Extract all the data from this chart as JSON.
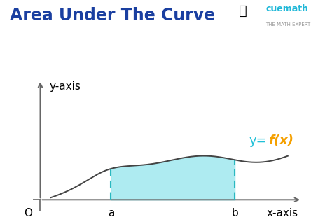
{
  "title": "Area Under The Curve",
  "title_color": "#1a3fa0",
  "title_fontsize": 17,
  "bg_color": "#ffffff",
  "curve_color": "#444444",
  "fill_color": "#a0e8ef",
  "fill_alpha": 0.85,
  "dashed_color": "#2ab8c0",
  "axis_color": "#666666",
  "xlabel": "x-axis",
  "ylabel": "y-axis",
  "label_a": "a",
  "label_b": "b",
  "label_o": "O",
  "label_y_eq": "y=",
  "label_fx": "f(x)",
  "y_eq_color": "#20c0d8",
  "fx_color": "#f5a000",
  "annotation_fontsize": 11,
  "axis_label_fontsize": 11,
  "tick_fontsize": 11,
  "a": 2.0,
  "b": 5.5,
  "xlim": [
    -0.2,
    7.5
  ],
  "ylim": [
    -0.5,
    5.5
  ]
}
